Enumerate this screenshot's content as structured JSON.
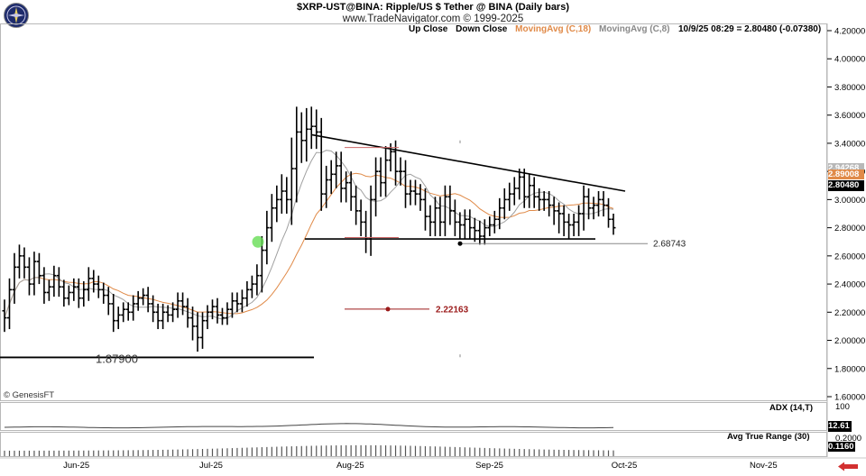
{
  "header": {
    "title": "$XRP-UST@BINA:  Ripple/US $ Tether @ BINA  (Daily bars)",
    "copyright": "www.TradeNavigator.com © 1999-2025"
  },
  "legend": {
    "up_close": "Up Close",
    "down_close": "Down Close",
    "ma18": "MovingAvg (C,18)",
    "ma8": "MovingAvg (C,8)",
    "quote": "10/9/25 08:29 = 2.80480 (-0.07380)"
  },
  "colors": {
    "bars": "#000000",
    "ma18": "#e08a48",
    "ma8": "#a0a0a0",
    "trendline": "#000000",
    "label_red": "#9b1b1b",
    "green_marker": "#66dd55",
    "last_price_box": "#000000",
    "ma18_box": "#e08a48",
    "ma8_box": "#b8b8b8"
  },
  "watermark": "© GenesisFT",
  "chart_data": {
    "type": "ohlc",
    "x_axis": {
      "labels": [
        "Jun-25",
        "Jul-25",
        "Aug-25",
        "Sep-25",
        "Oct-25",
        "Nov-25"
      ],
      "start": "2025-05-15",
      "end": "2025-11-15"
    },
    "y_axis": {
      "ticks": [
        "1.60000",
        "1.80000",
        "2.00000",
        "2.20000",
        "2.40000",
        "2.60000",
        "2.80000",
        "3.00000",
        "3.20000",
        "3.40000",
        "3.60000",
        "3.80000",
        "4.00000",
        "4.20000"
      ],
      "range": [
        1.6,
        4.2
      ]
    },
    "price_labels": {
      "last": "2.80480",
      "ma18": "2.89008",
      "ma8": "2.94268"
    },
    "bars": {
      "close": [
        2.16,
        2.36,
        2.52,
        2.6,
        2.52,
        2.4,
        2.56,
        2.46,
        2.34,
        2.38,
        2.46,
        2.38,
        2.3,
        2.34,
        2.38,
        2.3,
        2.36,
        2.44,
        2.4,
        2.36,
        2.32,
        2.26,
        2.14,
        2.18,
        2.22,
        2.2,
        2.26,
        2.3,
        2.32,
        2.26,
        2.2,
        2.14,
        2.2,
        2.18,
        2.22,
        2.28,
        2.24,
        2.16,
        2.1,
        2.02,
        2.14,
        2.2,
        2.24,
        2.18,
        2.16,
        2.22,
        2.28,
        2.26,
        2.3,
        2.36,
        2.4,
        2.46,
        2.64,
        2.8,
        2.94,
        3.0,
        3.06,
        3.0,
        3.22,
        3.48,
        3.42,
        3.5,
        3.52,
        3.48,
        3.04,
        3.14,
        3.18,
        3.24,
        3.08,
        3.12,
        3.02,
        2.92,
        2.84,
        2.72,
        3.0,
        3.2,
        3.12,
        3.28,
        3.34,
        3.2,
        3.2,
        3.04,
        3.06,
        3.04,
        3.0,
        2.88,
        2.84,
        2.94,
        2.84,
        3.02,
        2.92,
        2.84,
        2.82,
        2.86,
        2.8,
        2.78,
        2.74,
        2.8,
        2.82,
        2.86,
        2.94,
        3.0,
        3.04,
        3.08,
        3.16,
        3.02,
        3.1,
        3.02,
        3.0,
        3.0,
        2.96,
        2.92,
        2.9,
        2.84,
        2.82,
        2.84,
        2.9,
        3.02,
        2.94,
        2.96,
        3.0,
        2.96,
        2.86,
        2.8
      ],
      "high_offset": [
        0.08,
        0.08,
        0.1,
        0.08,
        0.06,
        0.07,
        0.07,
        0.06,
        0.06,
        0.05,
        0.07,
        0.06,
        0.05,
        0.05,
        0.06,
        0.06,
        0.06,
        0.08,
        0.06,
        0.06,
        0.05,
        0.06,
        0.07,
        0.06,
        0.05,
        0.05,
        0.06,
        0.05,
        0.05,
        0.06,
        0.06,
        0.06,
        0.06,
        0.05,
        0.05,
        0.06,
        0.06,
        0.06,
        0.08,
        0.1,
        0.06,
        0.05,
        0.05,
        0.06,
        0.05,
        0.05,
        0.06,
        0.06,
        0.06,
        0.06,
        0.06,
        0.08,
        0.1,
        0.12,
        0.1,
        0.1,
        0.12,
        0.1,
        0.22,
        0.18,
        0.14,
        0.15,
        0.14,
        0.12,
        0.1,
        0.1,
        0.1,
        0.1,
        0.1,
        0.08,
        0.08,
        0.08,
        0.08,
        0.08,
        0.1,
        0.1,
        0.1,
        0.1,
        0.06,
        0.08,
        0.1,
        0.08,
        0.08,
        0.08,
        0.07,
        0.08,
        0.08,
        0.08,
        0.08,
        0.08,
        0.08,
        0.08,
        0.07,
        0.07,
        0.07,
        0.07,
        0.07,
        0.06,
        0.06,
        0.06,
        0.07,
        0.08,
        0.08,
        0.08,
        0.06,
        0.06,
        0.08,
        0.06,
        0.06,
        0.06,
        0.06,
        0.06,
        0.06,
        0.06,
        0.06,
        0.06,
        0.06,
        0.08,
        0.06,
        0.06,
        0.06,
        0.06,
        0.05,
        0.04
      ],
      "low_offset": [
        0.1,
        0.08,
        0.1,
        0.08,
        0.08,
        0.08,
        0.08,
        0.06,
        0.08,
        0.06,
        0.07,
        0.07,
        0.06,
        0.05,
        0.06,
        0.07,
        0.06,
        0.08,
        0.06,
        0.06,
        0.06,
        0.08,
        0.08,
        0.06,
        0.05,
        0.06,
        0.06,
        0.05,
        0.05,
        0.06,
        0.07,
        0.06,
        0.06,
        0.05,
        0.05,
        0.06,
        0.06,
        0.07,
        0.1,
        0.1,
        0.08,
        0.06,
        0.05,
        0.06,
        0.05,
        0.05,
        0.06,
        0.06,
        0.06,
        0.06,
        0.06,
        0.08,
        0.12,
        0.1,
        0.1,
        0.1,
        0.1,
        0.1,
        0.18,
        0.24,
        0.16,
        0.15,
        0.14,
        0.12,
        0.12,
        0.1,
        0.1,
        0.1,
        0.1,
        0.1,
        0.1,
        0.1,
        0.1,
        0.1,
        0.12,
        0.12,
        0.1,
        0.1,
        0.08,
        0.1,
        0.1,
        0.1,
        0.08,
        0.08,
        0.08,
        0.1,
        0.1,
        0.1,
        0.1,
        0.1,
        0.1,
        0.1,
        0.1,
        0.1,
        0.08,
        0.08,
        0.06,
        0.06,
        0.06,
        0.06,
        0.07,
        0.08,
        0.08,
        0.08,
        0.08,
        0.08,
        0.08,
        0.08,
        0.08,
        0.08,
        0.08,
        0.1,
        0.14,
        0.1,
        0.1,
        0.08,
        0.1,
        0.12,
        0.08,
        0.08,
        0.08,
        0.08,
        0.06,
        0.05
      ]
    },
    "annotations": {
      "support_level": "1.87900",
      "red_level": "2.22163",
      "low_level": "2.68743",
      "upper_trend_start_price": 3.46,
      "upper_trend_end_price": 3.06,
      "lower_line_price": 2.72
    },
    "adx": {
      "label": "ADX (14,T)",
      "axis_tick": "100",
      "value": "12.61"
    },
    "atr": {
      "label": "Avg True Range (30)",
      "axis_tick": "0.2000",
      "value": "0.1160"
    }
  }
}
